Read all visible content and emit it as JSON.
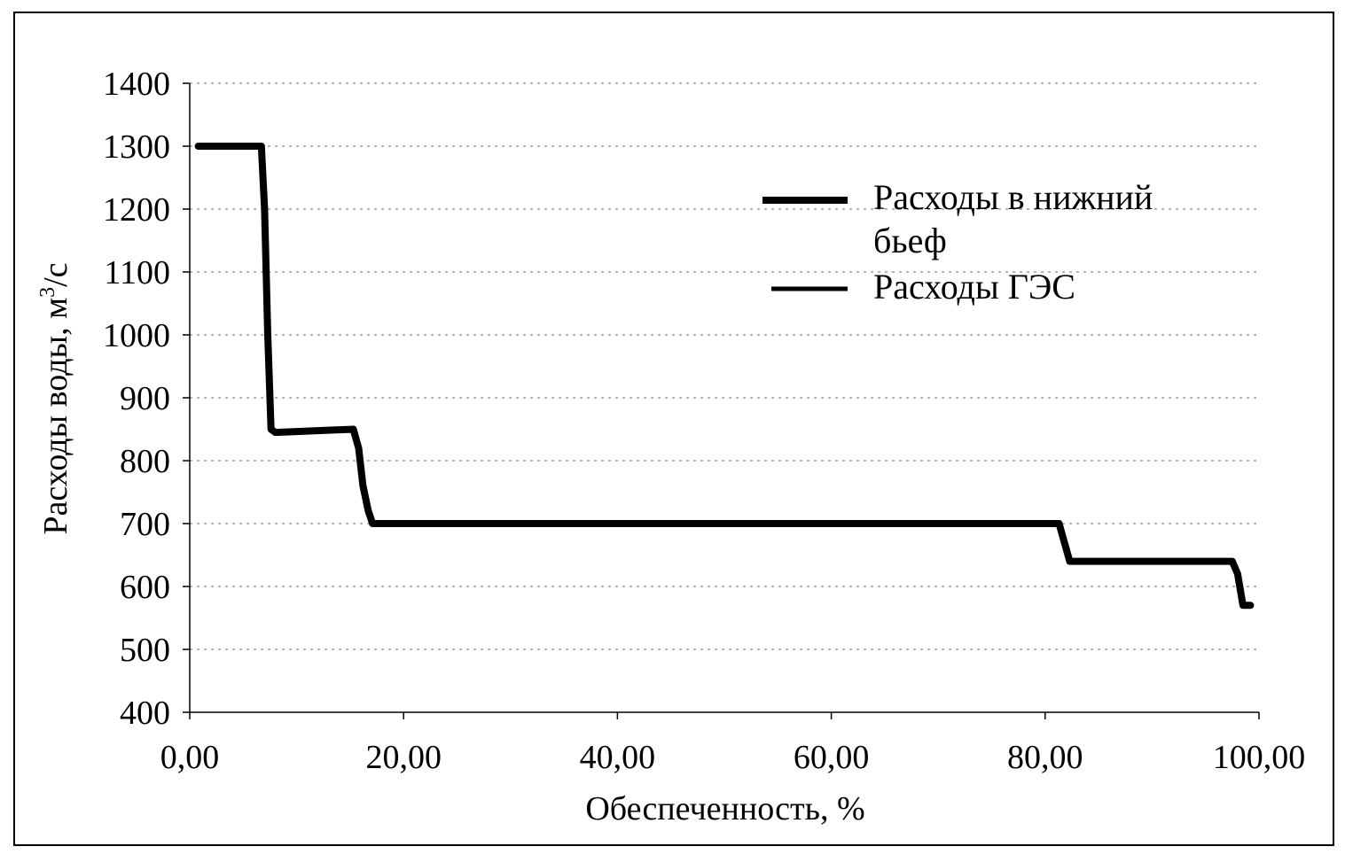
{
  "chart_data": {
    "type": "line",
    "xlabel": "Обеспеченность, %",
    "ylabel_main": "Расходы воды, м",
    "ylabel_sup": "3",
    "ylabel_tail": "/с",
    "xlim": [
      0,
      100
    ],
    "ylim": [
      400,
      1400
    ],
    "x_ticks": [
      0,
      20,
      40,
      60,
      80,
      100
    ],
    "x_tick_labels": [
      "0,00",
      "20,00",
      "40,00",
      "60,00",
      "80,00",
      "100,00"
    ],
    "y_ticks": [
      400,
      500,
      600,
      700,
      800,
      900,
      1000,
      1100,
      1200,
      1300,
      1400
    ],
    "y_tick_labels": [
      "400",
      "500",
      "600",
      "700",
      "800",
      "900",
      "1000",
      "1100",
      "1200",
      "1300",
      "1400"
    ],
    "grid": "horizontal-dotted",
    "legend_position": "upper-right",
    "legend": [
      {
        "name_line1": "Расходы в нижний",
        "name_line2": "бьеф",
        "color": "#000000"
      },
      {
        "name_line1": "Расходы ГЭС",
        "name_line2": "",
        "color": "#000000"
      }
    ],
    "series": [
      {
        "name": "Расходы в нижний бьеф",
        "color": "#000000",
        "x": [
          0.8,
          6.7,
          7.0,
          7.3,
          7.6,
          8.0,
          15.3,
          15.8,
          16.2,
          16.7,
          17.1,
          81.3,
          81.8,
          82.3,
          97.5,
          98.0,
          98.5,
          99.2
        ],
        "y": [
          1300,
          1300,
          1200,
          1000,
          850,
          845,
          850,
          820,
          760,
          720,
          700,
          700,
          670,
          640,
          640,
          620,
          570,
          570
        ]
      },
      {
        "name": "Расходы ГЭС",
        "color": "#000000",
        "x": [
          0.8,
          6.7,
          7.0,
          7.3,
          7.6,
          8.0,
          15.3,
          15.8,
          16.2,
          16.7,
          17.1,
          81.3,
          81.8,
          82.3,
          97.5,
          98.0,
          98.5,
          99.2
        ],
        "y": [
          1300,
          1300,
          1200,
          1000,
          850,
          845,
          850,
          820,
          760,
          720,
          700,
          700,
          670,
          640,
          640,
          620,
          570,
          570
        ]
      }
    ]
  }
}
